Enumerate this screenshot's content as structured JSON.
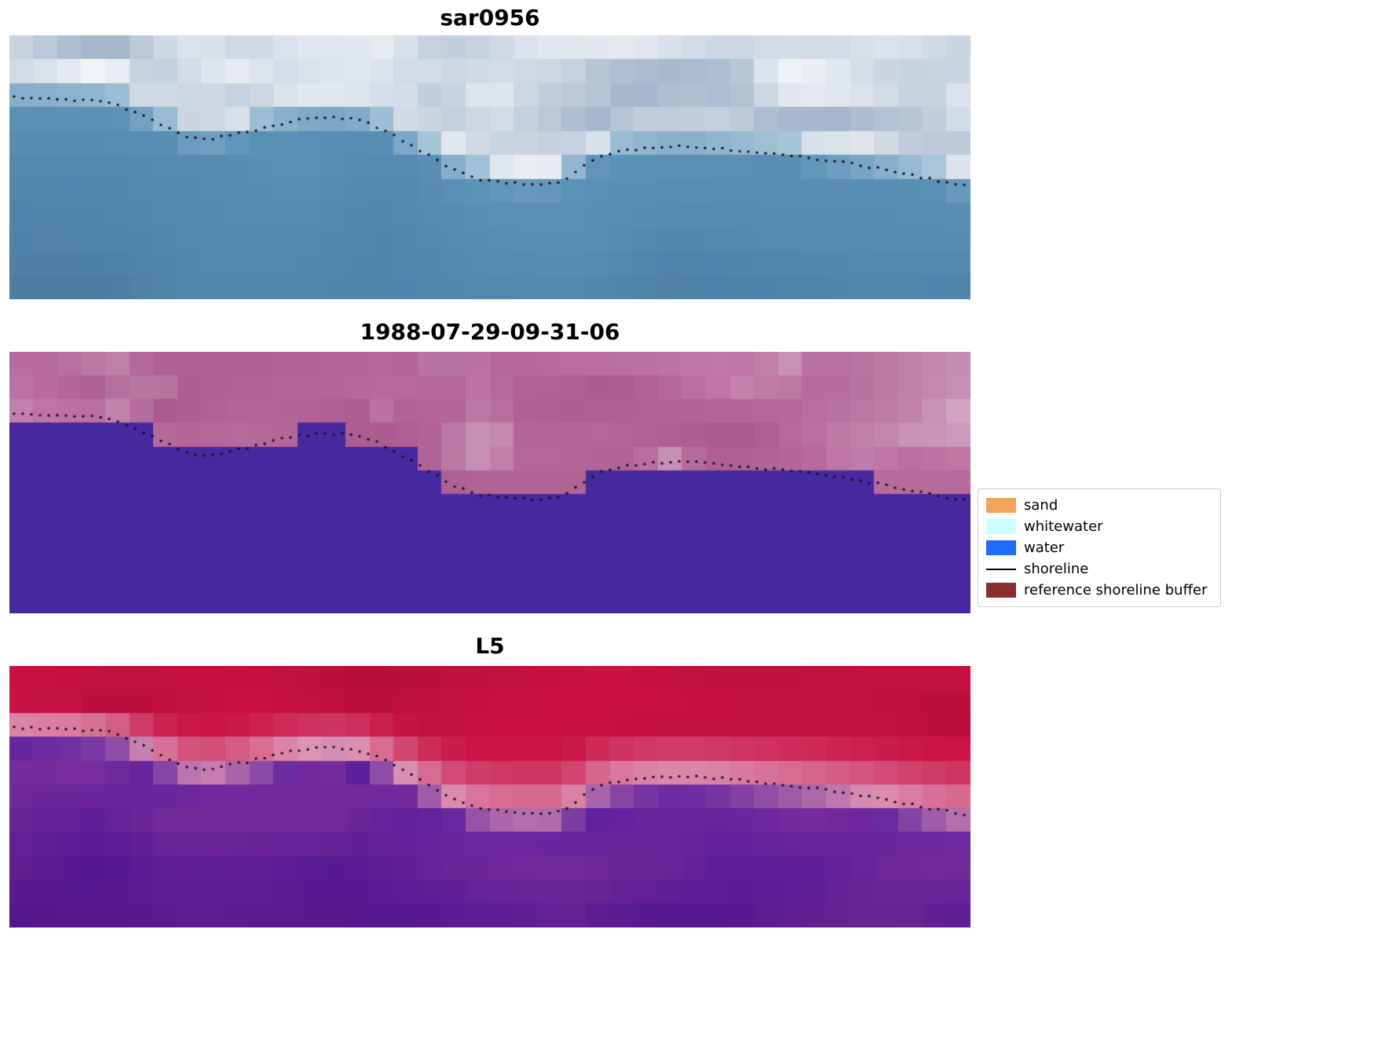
{
  "chart_data": {
    "type": "heatmap",
    "figure_background": "#ffffff",
    "panels": [
      {
        "id": "sar",
        "title": "sar0956",
        "kind": "satellite-sar",
        "description": "SAR satellite image: blue sea below dotted shoreline, bright cloud-like white returns above"
      },
      {
        "id": "classified",
        "title": "1988-07-29-09-31-06",
        "kind": "classification",
        "description": "Classified scene: flat purple water mask below pixel-stepped shoreline, magenta-pink reference buffer above"
      },
      {
        "id": "l5",
        "title": "L5",
        "kind": "satellite-false-colour",
        "description": "Landsat 5 false-colour composite: crimson upper zone, pale pink band along shoreline, purple sea below"
      }
    ],
    "legend": {
      "entries": [
        {
          "label": "sand",
          "kind": "patch",
          "color": "#f4a45a"
        },
        {
          "label": "whitewater",
          "kind": "patch",
          "color": "#ccffff"
        },
        {
          "label": "water",
          "kind": "patch",
          "color": "#1f6bff"
        },
        {
          "label": "shoreline",
          "kind": "line",
          "color": "#000000"
        },
        {
          "label": "reference shoreline buffer",
          "kind": "patch",
          "color": "#8c2e2e"
        }
      ]
    },
    "shoreline": {
      "color": "#141414",
      "dot_radius": 1.7,
      "dot_spacing_px": 11,
      "points_normalized": [
        [
          0.005,
          0.235
        ],
        [
          0.06,
          0.242
        ],
        [
          0.105,
          0.253
        ],
        [
          0.13,
          0.29
        ],
        [
          0.155,
          0.335
        ],
        [
          0.18,
          0.38
        ],
        [
          0.205,
          0.398
        ],
        [
          0.23,
          0.378
        ],
        [
          0.25,
          0.365
        ],
        [
          0.275,
          0.34
        ],
        [
          0.3,
          0.322
        ],
        [
          0.33,
          0.312
        ],
        [
          0.36,
          0.318
        ],
        [
          0.385,
          0.35
        ],
        [
          0.405,
          0.39
        ],
        [
          0.425,
          0.432
        ],
        [
          0.445,
          0.472
        ],
        [
          0.465,
          0.515
        ],
        [
          0.49,
          0.545
        ],
        [
          0.52,
          0.56
        ],
        [
          0.555,
          0.565
        ],
        [
          0.578,
          0.55
        ],
        [
          0.6,
          0.49
        ],
        [
          0.617,
          0.455
        ],
        [
          0.64,
          0.438
        ],
        [
          0.67,
          0.425
        ],
        [
          0.7,
          0.42
        ],
        [
          0.735,
          0.428
        ],
        [
          0.77,
          0.44
        ],
        [
          0.8,
          0.452
        ],
        [
          0.835,
          0.465
        ],
        [
          0.865,
          0.48
        ],
        [
          0.895,
          0.498
        ],
        [
          0.928,
          0.522
        ],
        [
          0.962,
          0.548
        ],
        [
          0.995,
          0.568
        ]
      ]
    },
    "palettes": {
      "sar": {
        "water_base": "#5d92b8",
        "water_deep": "#4a7ca4",
        "cloud_dark": "#8fa6c0",
        "cloud_mid": "#c9d5e2",
        "cloud_bright": "#ffffff",
        "shore_light": "#a9c6da"
      },
      "classified": {
        "water": "#47289f",
        "buffer_base": "#b45b93",
        "buffer_light": "#cd8fba",
        "buffer_pale": "#e0c4da",
        "buffer_dark": "#9d4f83"
      },
      "l5": {
        "red_dark": "#b00d38",
        "red_base": "#c31141",
        "red_bright": "#d2124a",
        "pink_band": "#dd93b4",
        "purple_base": "#5c1d9e",
        "purple_mix": "#7e309f",
        "purple_deep": "#470e80"
      }
    },
    "grid": {
      "cols": 40,
      "rows": 11
    }
  }
}
